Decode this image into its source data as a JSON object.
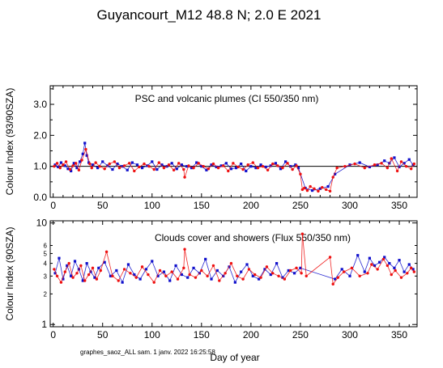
{
  "title": "Guyancourt_M12  48.8 N; 2.0 E   2021",
  "footer": "graphes_saoz_ALL  sam. 1 janv. 2022 16:25:58",
  "xlabel": "Day of year",
  "colors": {
    "series_a": "#1010cc",
    "series_b": "#ee1010",
    "axes": "#000000"
  },
  "chart_data": [
    {
      "type": "scatter",
      "annotation": "PSC and volcanic plumes (CI 550/350 nm)",
      "ylabel": "Colour Index (93/90SZA)",
      "xlim": [
        -3,
        368
      ],
      "ylim": [
        0,
        3.6
      ],
      "yscale": "linear",
      "xticks": [
        0,
        50,
        100,
        150,
        200,
        250,
        300,
        350
      ],
      "yticks": [
        0.0,
        1.0,
        2.0,
        3.0
      ],
      "ytick_labels": [
        "0.0",
        "1.0",
        "2.0",
        "3.0"
      ],
      "reference_line": 1.0,
      "grid": false,
      "series": [
        {
          "marker": "square",
          "color": "#1010cc",
          "x": [
            2,
            5,
            8,
            12,
            15,
            18,
            21,
            24,
            27,
            30,
            32,
            34,
            36,
            40,
            45,
            50,
            55,
            60,
            65,
            70,
            75,
            80,
            85,
            90,
            95,
            100,
            105,
            110,
            115,
            120,
            125,
            130,
            135,
            140,
            145,
            150,
            155,
            160,
            165,
            170,
            175,
            180,
            185,
            190,
            195,
            200,
            205,
            210,
            215,
            220,
            225,
            230,
            235,
            240,
            245,
            248,
            255,
            262,
            270,
            278,
            285,
            300,
            310,
            320,
            328,
            335,
            340,
            345,
            350,
            355,
            360,
            364
          ],
          "y": [
            1.05,
            0.98,
            1.12,
            1.02,
            0.92,
            0.85,
            1.1,
            0.95,
            1.15,
            1.4,
            1.75,
            1.35,
            1.12,
            1.05,
            0.95,
            1.15,
            1.02,
            0.9,
            1.08,
            1.0,
            0.88,
            1.12,
            1.05,
            0.95,
            1.02,
            1.15,
            0.9,
            1.05,
            1.0,
            1.1,
            0.92,
            1.05,
            1.0,
            0.95,
            1.12,
            1.0,
            0.88,
            1.05,
            0.98,
            1.02,
            1.1,
            0.92,
            0.95,
            1.08,
            0.85,
            1.0,
            0.95,
            1.05,
            0.98,
            1.02,
            1.1,
            0.92,
            1.15,
            1.0,
            1.05,
            0.95,
            0.3,
            0.22,
            0.28,
            0.35,
            0.75,
            1.05,
            1.12,
            0.98,
            1.05,
            1.18,
            1.1,
            1.28,
            0.98,
            1.1,
            1.22,
            1.05
          ]
        },
        {
          "marker": "circle",
          "color": "#ee1010",
          "x": [
            1,
            4,
            7,
            10,
            13,
            17,
            20,
            23,
            26,
            29,
            33,
            37,
            39,
            43,
            47,
            52,
            57,
            62,
            67,
            72,
            77,
            82,
            87,
            92,
            97,
            102,
            107,
            112,
            117,
            122,
            127,
            132,
            133,
            137,
            142,
            147,
            152,
            157,
            162,
            167,
            172,
            177,
            182,
            187,
            192,
            197,
            202,
            207,
            212,
            217,
            222,
            227,
            232,
            237,
            242,
            246,
            250,
            252,
            254,
            257,
            260,
            264,
            268,
            272,
            276,
            280,
            283,
            287,
            295,
            305,
            315,
            325,
            332,
            338,
            342,
            348,
            352,
            357,
            362,
            365
          ],
          "y": [
            1.0,
            1.1,
            0.95,
            1.05,
            1.15,
            0.9,
            1.02,
            1.1,
            0.88,
            1.2,
            1.55,
            1.08,
            0.95,
            1.12,
            1.0,
            0.92,
            1.08,
            1.15,
            0.95,
            1.02,
            1.1,
            0.85,
            0.98,
            1.08,
            1.0,
            0.9,
            1.12,
            0.95,
            1.05,
            0.88,
            1.1,
            0.9,
            0.65,
            1.02,
            0.95,
            1.1,
            1.0,
            0.92,
            1.08,
            0.95,
            1.02,
            0.85,
            1.1,
            0.98,
            0.9,
            1.05,
            1.12,
            0.95,
            1.0,
            0.88,
            1.08,
            1.02,
            0.95,
            1.1,
            0.9,
            1.02,
            0.75,
            0.25,
            0.3,
            0.22,
            0.35,
            0.28,
            0.2,
            0.32,
            0.25,
            0.2,
            0.65,
            0.95,
            1.0,
            1.08,
            0.95,
            1.05,
            1.1,
            0.95,
            1.25,
            0.85,
            1.15,
            1.0,
            0.92,
            1.08
          ]
        }
      ]
    },
    {
      "type": "scatter",
      "annotation": "Clouds cover and showers (Flux 550/350 nm)",
      "ylabel": "Colour Index (90SZA)",
      "xlim": [
        -3,
        368
      ],
      "ylim": [
        0.95,
        10.5
      ],
      "yscale": "log",
      "xticks": [
        0,
        50,
        100,
        150,
        200,
        250,
        300,
        350
      ],
      "yticks_major": [
        1,
        10
      ],
      "yticks_major_labels": [
        "1",
        "10"
      ],
      "yticks_minor": [
        2,
        3,
        4,
        5,
        6
      ],
      "yticks_minor_labels": [
        "2",
        "3",
        "4",
        "5",
        "6"
      ],
      "grid": false,
      "series": [
        {
          "marker": "square",
          "color": "#1010cc",
          "x": [
            2,
            6,
            10,
            14,
            18,
            22,
            26,
            30,
            34,
            38,
            42,
            46,
            52,
            58,
            64,
            70,
            76,
            82,
            88,
            94,
            100,
            106,
            112,
            118,
            124,
            130,
            136,
            142,
            148,
            154,
            160,
            166,
            172,
            178,
            184,
            190,
            196,
            202,
            208,
            214,
            220,
            226,
            232,
            238,
            244,
            250,
            285,
            292,
            300,
            308,
            315,
            320,
            325,
            330,
            335,
            340,
            345,
            350,
            355,
            360,
            364
          ],
          "y": [
            3.2,
            4.5,
            2.8,
            3.8,
            3.0,
            4.2,
            3.5,
            2.7,
            4.0,
            3.3,
            2.9,
            3.6,
            4.1,
            3.0,
            3.4,
            2.6,
            3.9,
            3.1,
            2.8,
            3.5,
            4.2,
            3.0,
            3.3,
            2.7,
            3.8,
            3.1,
            2.9,
            3.6,
            3.2,
            4.4,
            2.8,
            3.4,
            3.0,
            3.7,
            2.6,
            3.3,
            3.9,
            3.0,
            2.8,
            3.5,
            3.1,
            4.0,
            2.9,
            3.4,
            3.2,
            3.6,
            2.8,
            3.5,
            3.0,
            4.8,
            3.3,
            4.5,
            3.8,
            4.1,
            4.6,
            4.0,
            3.6,
            4.3,
            3.3,
            3.9,
            3.5
          ]
        },
        {
          "marker": "circle",
          "color": "#ee1010",
          "x": [
            1,
            4,
            8,
            12,
            16,
            20,
            24,
            28,
            32,
            36,
            40,
            44,
            48,
            54,
            60,
            66,
            72,
            78,
            84,
            90,
            96,
            102,
            108,
            114,
            120,
            126,
            132,
            133,
            138,
            144,
            150,
            156,
            162,
            168,
            174,
            180,
            186,
            192,
            198,
            204,
            210,
            216,
            222,
            228,
            234,
            240,
            246,
            251,
            252,
            256,
            280,
            283,
            288,
            294,
            302,
            310,
            318,
            322,
            328,
            334,
            338,
            342,
            346,
            352,
            358,
            362,
            365
          ],
          "y": [
            3.5,
            3.0,
            2.6,
            3.3,
            4.0,
            2.9,
            3.2,
            3.8,
            2.7,
            3.1,
            3.6,
            2.8,
            3.4,
            5.2,
            3.0,
            2.7,
            3.5,
            3.2,
            2.9,
            3.7,
            3.1,
            2.6,
            3.4,
            3.0,
            3.3,
            2.8,
            3.6,
            5.5,
            3.1,
            2.9,
            3.4,
            3.0,
            3.8,
            2.7,
            3.2,
            4.0,
            3.0,
            2.8,
            3.5,
            3.1,
            2.9,
            3.7,
            3.2,
            3.0,
            2.8,
            3.4,
            3.6,
            3.2,
            7.8,
            3.0,
            4.6,
            2.5,
            2.9,
            3.3,
            3.6,
            3.0,
            3.2,
            3.9,
            3.5,
            4.4,
            3.8,
            3.1,
            3.4,
            2.9,
            3.2,
            3.6,
            3.3
          ]
        }
      ]
    }
  ]
}
